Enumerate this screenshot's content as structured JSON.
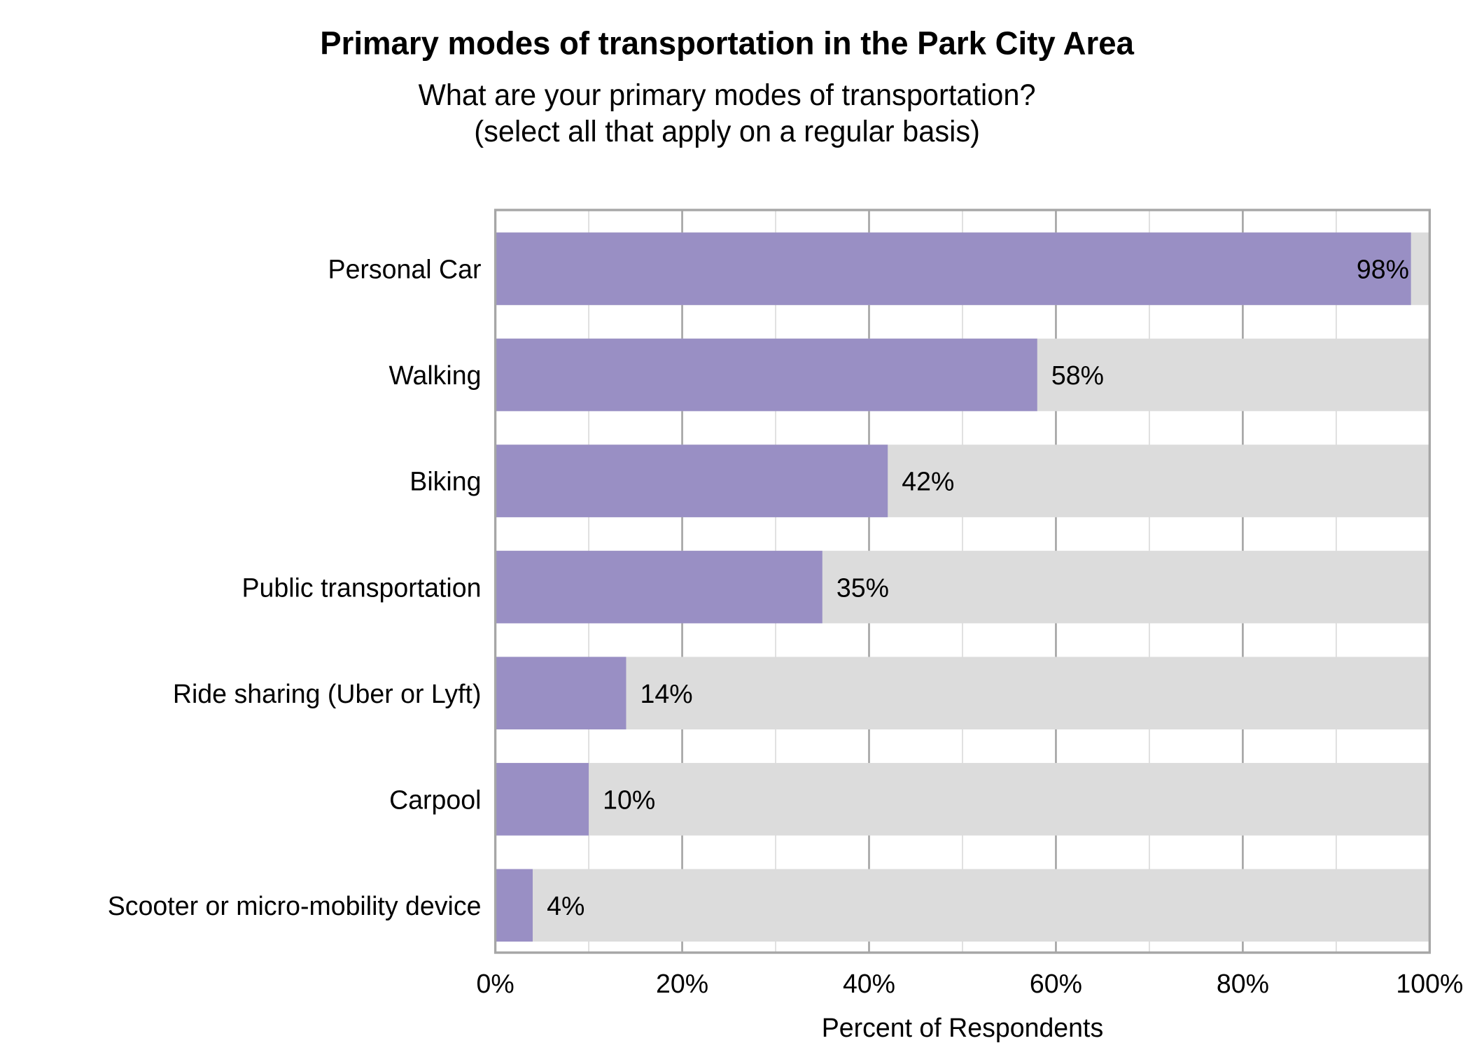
{
  "chart_data": {
    "type": "bar",
    "orientation": "horizontal",
    "title": "Primary modes of transportation in the Park City Area",
    "subtitle": [
      "What are your primary modes of transportation?",
      "(select all that apply on a regular basis)"
    ],
    "xlabel": "Percent of Respondents",
    "ylabel": "",
    "xlim": [
      0,
      100
    ],
    "x_ticks": [
      "0%",
      "20%",
      "40%",
      "60%",
      "80%",
      "100%"
    ],
    "grid": true,
    "categories": [
      "Personal Car",
      "Walking",
      "Biking",
      "Public transportation",
      "Ride sharing (Uber or Lyft)",
      "Carpool",
      "Scooter or micro-mobility device"
    ],
    "values": [
      98,
      58,
      42,
      35,
      14,
      10,
      4
    ],
    "data_labels": [
      "98%",
      "58%",
      "42%",
      "35%",
      "14%",
      "10%",
      "4%"
    ],
    "colors": {
      "bar": "#998fc4",
      "background_bar": "#dcdcdc",
      "grid_major": "#a6a6a6",
      "grid_minor": "#d9d9d9"
    }
  }
}
